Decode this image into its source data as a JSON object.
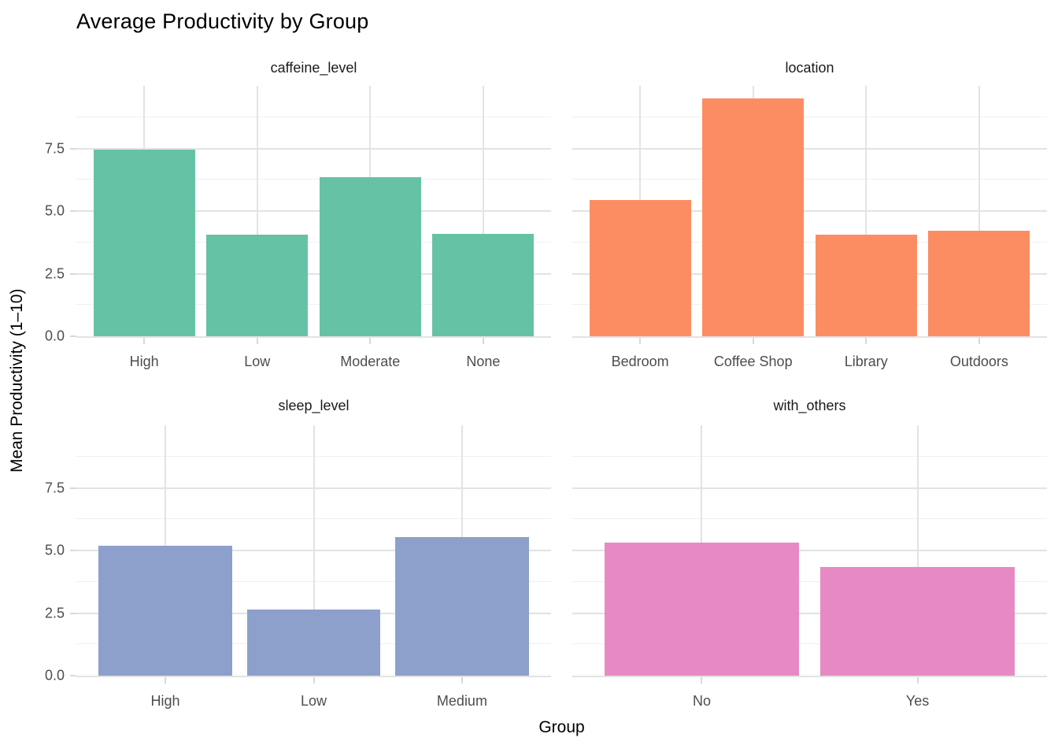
{
  "chart_data": {
    "type": "bar",
    "title": "Average Productivity by Group",
    "xlabel": "Group",
    "ylabel": "Mean Productivity (1–10)",
    "ylim": [
      0,
      10
    ],
    "y_ticks": [
      0,
      2.5,
      5,
      7.5
    ],
    "y_tick_labels": [
      "0.0",
      "2.5",
      "5.0",
      "7.5"
    ],
    "y_minor_gridlines": [
      1.25,
      3.75,
      6.25,
      8.75
    ],
    "grid": true,
    "legend": "none",
    "bar_width_fraction": 0.9,
    "facets": [
      {
        "name": "caffeine_level",
        "categories": [
          "High",
          "Low",
          "Moderate",
          "None"
        ],
        "values": [
          7.45,
          4.05,
          6.35,
          4.1
        ],
        "color": "#66C2A5"
      },
      {
        "name": "location",
        "categories": [
          "Bedroom",
          "Coffee Shop",
          "Library",
          "Outdoors"
        ],
        "values": [
          5.45,
          9.5,
          4.05,
          4.2
        ],
        "color": "#FC8D62"
      },
      {
        "name": "sleep_level",
        "categories": [
          "High",
          "Low",
          "Medium"
        ],
        "values": [
          5.2,
          2.65,
          5.55
        ],
        "color": "#8DA0CB"
      },
      {
        "name": "with_others",
        "categories": [
          "No",
          "Yes"
        ],
        "values": [
          5.3,
          4.35
        ],
        "color": "#E78AC3"
      }
    ]
  }
}
